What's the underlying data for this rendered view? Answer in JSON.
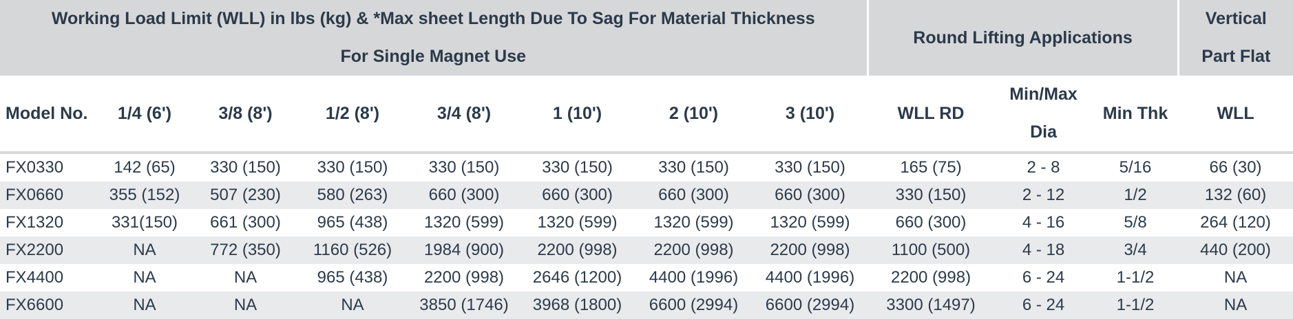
{
  "header": {
    "groups": [
      {
        "lines": [
          "Working Load Limit (WLL) in lbs (kg) & *Max sheet Length Due To Sag For Material Thickness",
          "For Single Magnet Use"
        ]
      },
      {
        "lines": [
          "Round Lifting Applications"
        ]
      },
      {
        "lines": [
          "Vertical",
          "Part Flat"
        ]
      }
    ],
    "columns": [
      {
        "lines": [
          "Model No."
        ]
      },
      {
        "lines": [
          "1/4 (6')"
        ]
      },
      {
        "lines": [
          "3/8 (8')"
        ]
      },
      {
        "lines": [
          "1/2 (8')"
        ]
      },
      {
        "lines": [
          "3/4 (8')"
        ]
      },
      {
        "lines": [
          "1 (10')"
        ]
      },
      {
        "lines": [
          "2 (10')"
        ]
      },
      {
        "lines": [
          "3 (10')"
        ]
      },
      {
        "lines": [
          "WLL RD"
        ]
      },
      {
        "lines": [
          "Min/Max",
          "Dia"
        ]
      },
      {
        "lines": [
          "Min Thk"
        ]
      },
      {
        "lines": [
          "WLL"
        ]
      }
    ]
  },
  "table": {
    "rows": [
      [
        "FX0330",
        "142 (65)",
        "330 (150)",
        "330 (150)",
        "330 (150)",
        "330 (150)",
        "330 (150)",
        "330 (150)",
        "165 (75)",
        "2 - 8",
        "5/16",
        "66 (30)"
      ],
      [
        "FX0660",
        "355 (152)",
        "507 (230)",
        "580 (263)",
        "660 (300)",
        "660 (300)",
        "660 (300)",
        "660 (300)",
        "330 (150)",
        "2 - 12",
        "1/2",
        "132 (60)"
      ],
      [
        "FX1320",
        "331(150)",
        "661 (300)",
        "965 (438)",
        "1320 (599)",
        "1320 (599)",
        "1320 (599)",
        "1320 (599)",
        "660 (300)",
        "4 - 16",
        "5/8",
        "264 (120)"
      ],
      [
        "FX2200",
        "NA",
        "772 (350)",
        "1160 (526)",
        "1984 (900)",
        "2200 (998)",
        "2200 (998)",
        "2200 (998)",
        "1100 (500)",
        "4 - 18",
        "3/4",
        "440 (200)"
      ],
      [
        "FX4400",
        "NA",
        "NA",
        "965 (438)",
        "2200 (998)",
        "2646 (1200)",
        "4400 (1996)",
        "4400 (1996)",
        "2200 (998)",
        "6 - 24",
        "1-1/2",
        "NA"
      ],
      [
        "FX6600",
        "NA",
        "NA",
        "NA",
        "3850 (1746)",
        "3968 (1800)",
        "6600 (2994)",
        "6600 (2994)",
        "3300 (1497)",
        "6 - 24",
        "1-1/2",
        "NA"
      ]
    ]
  }
}
